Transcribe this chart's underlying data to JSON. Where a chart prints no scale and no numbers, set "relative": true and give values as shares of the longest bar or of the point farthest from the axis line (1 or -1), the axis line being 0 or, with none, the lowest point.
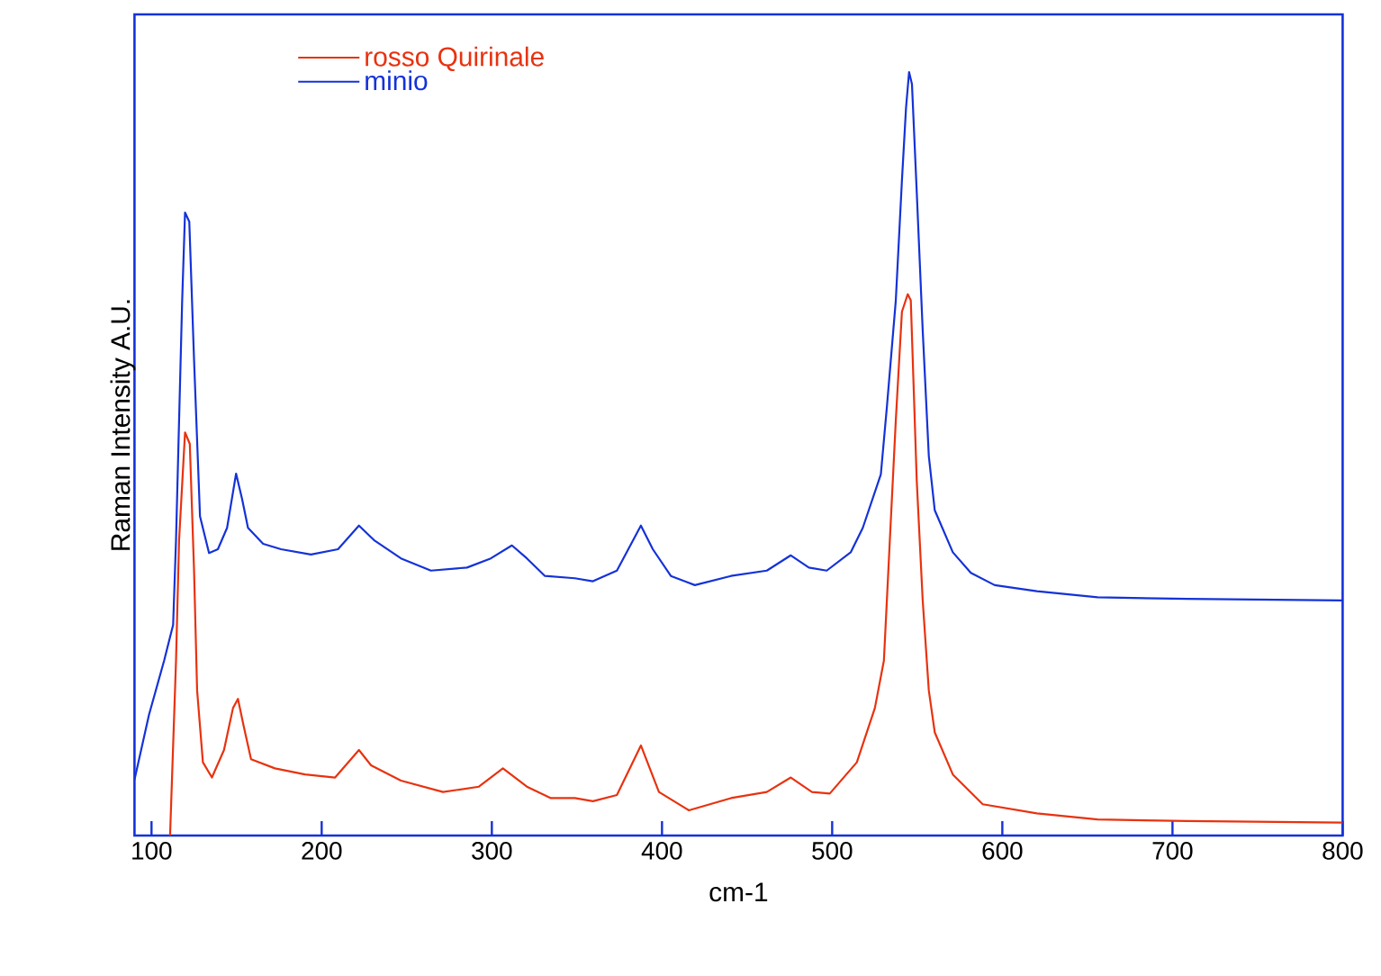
{
  "chart_data": {
    "type": "line",
    "xlabel": "cm-1",
    "ylabel": "Raman Intensity  A.U.",
    "relative": true,
    "xlim": [
      90,
      800
    ],
    "xticks": [
      100,
      200,
      300,
      400,
      500,
      600,
      700,
      800
    ],
    "legend": "top left",
    "marker": "none",
    "line_style": "solid",
    "grid": false,
    "series": [
      {
        "name": "rosso Quirinale",
        "color": "#e8320f",
        "x": [
          110.9,
          114.4,
          116.2,
          119.7,
          122.5,
          125,
          126.8,
          130.2,
          135.5,
          142.6,
          147.9,
          150.8,
          154.2,
          158.5,
          172.5,
          190.2,
          207.9,
          221.9,
          229,
          246.6,
          271.3,
          292.4,
          306.5,
          320.6,
          334.7,
          348.8,
          359.4,
          373.5,
          387.6,
          398.2,
          415.8,
          440.5,
          461.6,
          475.7,
          488.1,
          498.6,
          514.5,
          525.1,
          530.4,
          533.9,
          537.4,
          541,
          544.4,
          546.2,
          549.7,
          553.2,
          556.8,
          560.3,
          570.9,
          588.5,
          620.3,
          656,
          708.9,
          800
        ],
        "values": [
          0,
          0.229,
          0.387,
          0.528,
          0.513,
          0.347,
          0.19,
          0.096,
          0.076,
          0.112,
          0.167,
          0.179,
          0.143,
          0.1,
          0.088,
          0.08,
          0.076,
          0.112,
          0.092,
          0.072,
          0.057,
          0.064,
          0.088,
          0.064,
          0.049,
          0.049,
          0.045,
          0.053,
          0.118,
          0.057,
          0.033,
          0.049,
          0.057,
          0.076,
          0.057,
          0.055,
          0.096,
          0.167,
          0.229,
          0.387,
          0.544,
          0.686,
          0.709,
          0.701,
          0.465,
          0.308,
          0.19,
          0.135,
          0.08,
          0.041,
          0.029,
          0.021,
          0.019,
          0.017
        ]
      },
      {
        "name": "minio",
        "color": "#1432d8",
        "x": [
          90,
          98.5,
          107.4,
          112.7,
          114.4,
          118,
          119.7,
          122.2,
          125,
          128.5,
          133.8,
          139,
          144.4,
          149.7,
          153.2,
          156.7,
          165.6,
          176.1,
          193.7,
          209.6,
          221.9,
          230.7,
          246.6,
          264.2,
          285.4,
          299.4,
          311.8,
          320.6,
          331.2,
          348.8,
          359.4,
          373.5,
          387.6,
          394.6,
          405.2,
          419.3,
          440.5,
          461.6,
          475.7,
          486.3,
          496.8,
          510.9,
          518,
          528.6,
          532.1,
          537.4,
          541,
          543.4,
          545.2,
          546.9,
          549.7,
          553.2,
          556.8,
          560.3,
          570.9,
          581.5,
          595.5,
          620.3,
          656,
          708.9,
          800
        ],
        "values": [
          0.073,
          0.158,
          0.229,
          0.276,
          0.387,
          0.7,
          0.816,
          0.804,
          0.623,
          0.418,
          0.37,
          0.375,
          0.403,
          0.474,
          0.441,
          0.403,
          0.382,
          0.375,
          0.368,
          0.375,
          0.406,
          0.387,
          0.363,
          0.347,
          0.351,
          0.363,
          0.38,
          0.363,
          0.34,
          0.337,
          0.333,
          0.347,
          0.406,
          0.375,
          0.34,
          0.328,
          0.34,
          0.347,
          0.367,
          0.351,
          0.347,
          0.371,
          0.403,
          0.473,
          0.56,
          0.701,
          0.858,
          0.953,
          1.0,
          0.984,
          0.843,
          0.662,
          0.497,
          0.426,
          0.371,
          0.344,
          0.328,
          0.32,
          0.312,
          0.31,
          0.308
        ]
      }
    ]
  }
}
